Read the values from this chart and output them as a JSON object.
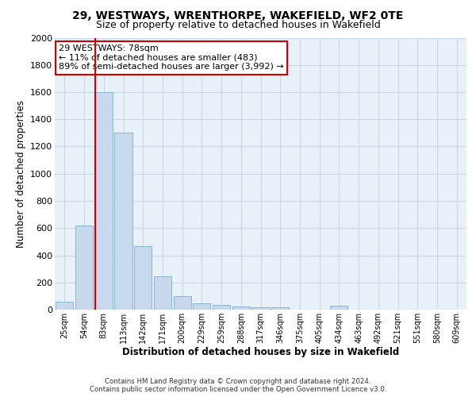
{
  "title1": "29, WESTWAYS, WRENTHORPE, WAKEFIELD, WF2 0TE",
  "title2": "Size of property relative to detached houses in Wakefield",
  "xlabel": "Distribution of detached houses by size in Wakefield",
  "ylabel": "Number of detached properties",
  "categories": [
    "25sqm",
    "54sqm",
    "83sqm",
    "113sqm",
    "142sqm",
    "171sqm",
    "200sqm",
    "229sqm",
    "259sqm",
    "288sqm",
    "317sqm",
    "346sqm",
    "375sqm",
    "405sqm",
    "434sqm",
    "463sqm",
    "492sqm",
    "521sqm",
    "551sqm",
    "580sqm",
    "609sqm"
  ],
  "values": [
    60,
    620,
    1600,
    1300,
    470,
    245,
    100,
    45,
    35,
    25,
    20,
    15,
    0,
    0,
    30,
    0,
    0,
    0,
    0,
    0,
    0
  ],
  "bar_color": "#c9d9ed",
  "bar_edge_color": "#8ab4d4",
  "vline_color": "#cc0000",
  "vline_x_index": 2,
  "annotation_text": "29 WESTWAYS: 78sqm\n← 11% of detached houses are smaller (483)\n89% of semi-detached houses are larger (3,992) →",
  "annotation_box_color": "#ffffff",
  "annotation_box_edge": "#cc0000",
  "ylim": [
    0,
    2000
  ],
  "yticks": [
    0,
    200,
    400,
    600,
    800,
    1000,
    1200,
    1400,
    1600,
    1800,
    2000
  ],
  "grid_color": "#c8d8e8",
  "bg_color": "#e8f0f8",
  "footer": "Contains HM Land Registry data © Crown copyright and database right 2024.\nContains public sector information licensed under the Open Government Licence v3.0."
}
